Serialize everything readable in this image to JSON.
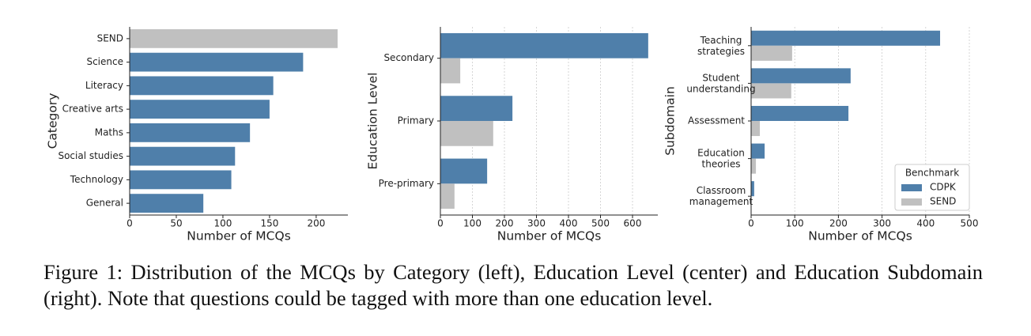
{
  "chart_data": [
    {
      "type": "bar",
      "orientation": "horizontal",
      "ylabel": "Category",
      "xlabel": "Number of MCQs",
      "categories": [
        "SEND",
        "Science",
        "Literacy",
        "Creative arts",
        "Maths",
        "Social studies",
        "Technology",
        "General"
      ],
      "values": [
        223,
        186,
        154,
        150,
        129,
        113,
        109,
        79
      ],
      "colors": [
        "#c0c0c0",
        "#4f7faa",
        "#4f7faa",
        "#4f7faa",
        "#4f7faa",
        "#4f7faa",
        "#4f7faa",
        "#4f7faa"
      ],
      "xlim": [
        0,
        234
      ],
      "xticks": [
        0,
        50,
        100,
        150,
        200
      ],
      "grid": false
    },
    {
      "type": "bar",
      "orientation": "horizontal",
      "ylabel": "Education Level",
      "xlabel": "Number of MCQs",
      "categories": [
        "Secondary",
        "Primary",
        "Pre-primary"
      ],
      "series": [
        {
          "color": "#4f7faa",
          "values": [
            649,
            225,
            146
          ]
        },
        {
          "color": "#c0c0c0",
          "values": [
            62,
            165,
            44
          ]
        }
      ],
      "xlim": [
        0,
        679
      ],
      "xticks": [
        0,
        100,
        200,
        300,
        400,
        500,
        600
      ],
      "grid": true
    },
    {
      "type": "bar",
      "orientation": "horizontal",
      "ylabel": "Subdomain",
      "xlabel": "Number of MCQs",
      "categories": [
        "Teaching strategies",
        "Student understanding",
        "Assessment",
        "Education theories",
        "Classroom management"
      ],
      "series": [
        {
          "name": "CDPK",
          "color": "#4f7faa",
          "values": [
            433,
            228,
            223,
            31,
            7
          ]
        },
        {
          "name": "SEND",
          "color": "#c0c0c0",
          "values": [
            94,
            92,
            20,
            11,
            0
          ]
        }
      ],
      "legend_title": "Benchmark",
      "legend": "lower right",
      "xlim": [
        0,
        500
      ],
      "xticks": [
        0,
        100,
        200,
        300,
        400,
        500
      ],
      "grid": true
    }
  ],
  "caption": "Figure 1: Distribution of the MCQs by Category (left), Education Level (center) and Education Subdomain (right). Note that questions could be tagged with more than one education level."
}
